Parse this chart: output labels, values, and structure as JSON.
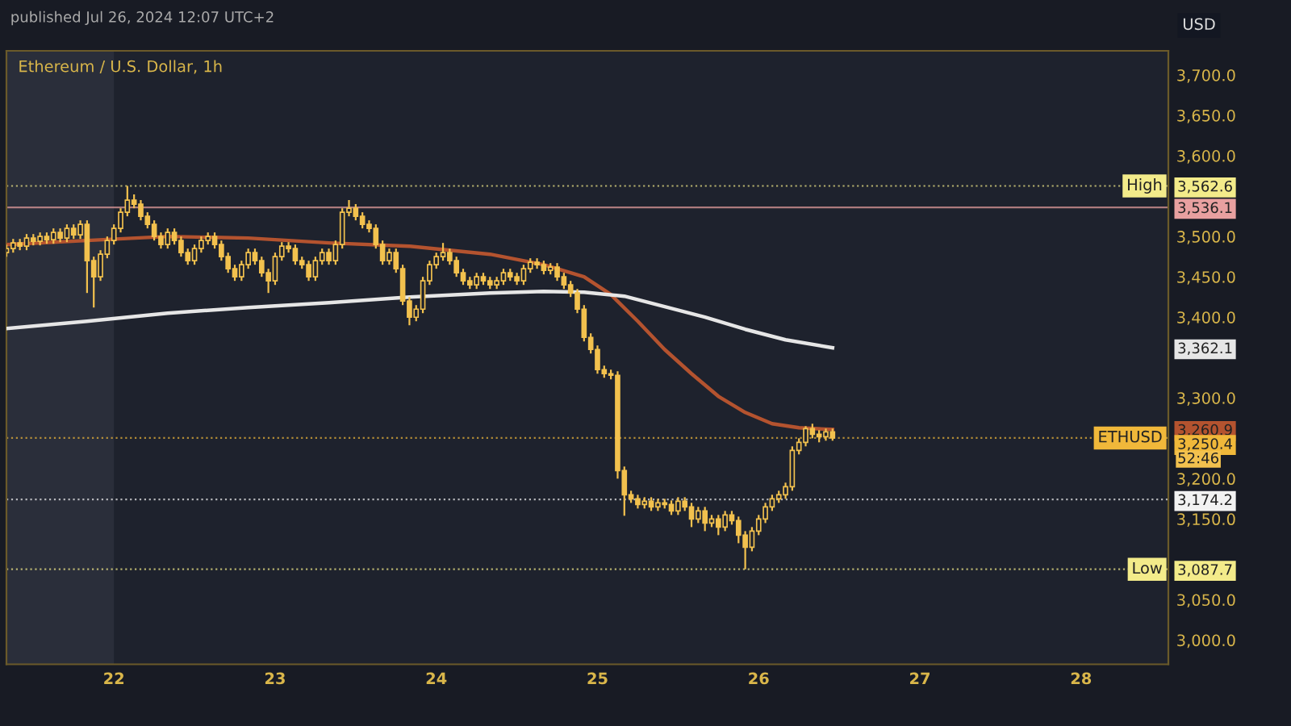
{
  "chart_data": {
    "type": "candlestick",
    "title": "Ethereum / U.S. Dollar, 1h",
    "annotations": [
      "published Jul 26, 2024 12:07 UTC+2",
      "52:46",
      "USD"
    ],
    "color": "#f2c14e",
    "x": [
      "2024-07-21T08:00",
      "2024-07-21T09:00",
      "2024-07-21T10:00",
      "2024-07-21T11:00",
      "2024-07-21T12:00",
      "2024-07-21T13:00",
      "2024-07-21T14:00",
      "2024-07-21T15:00",
      "2024-07-21T16:00",
      "2024-07-21T17:00",
      "2024-07-21T18:00",
      "2024-07-21T19:00",
      "2024-07-21T20:00",
      "2024-07-21T21:00",
      "2024-07-21T22:00",
      "2024-07-21T23:00",
      "2024-07-22T00:00",
      "2024-07-22T01:00",
      "2024-07-22T02:00",
      "2024-07-22T03:00",
      "2024-07-22T04:00",
      "2024-07-22T05:00",
      "2024-07-22T06:00",
      "2024-07-22T07:00",
      "2024-07-22T08:00",
      "2024-07-22T09:00",
      "2024-07-22T10:00",
      "2024-07-22T11:00",
      "2024-07-22T12:00",
      "2024-07-22T13:00",
      "2024-07-22T14:00",
      "2024-07-22T15:00",
      "2024-07-22T16:00",
      "2024-07-22T17:00",
      "2024-07-22T18:00",
      "2024-07-22T19:00",
      "2024-07-22T20:00",
      "2024-07-22T21:00",
      "2024-07-22T22:00",
      "2024-07-22T23:00",
      "2024-07-23T00:00",
      "2024-07-23T01:00",
      "2024-07-23T02:00",
      "2024-07-23T03:00",
      "2024-07-23T04:00",
      "2024-07-23T05:00",
      "2024-07-23T06:00",
      "2024-07-23T07:00",
      "2024-07-23T08:00",
      "2024-07-23T09:00",
      "2024-07-23T10:00",
      "2024-07-23T11:00",
      "2024-07-23T12:00",
      "2024-07-23T13:00",
      "2024-07-23T14:00",
      "2024-07-23T15:00",
      "2024-07-23T16:00",
      "2024-07-23T17:00",
      "2024-07-23T18:00",
      "2024-07-23T19:00",
      "2024-07-23T20:00",
      "2024-07-23T21:00",
      "2024-07-23T22:00",
      "2024-07-23T23:00",
      "2024-07-24T00:00",
      "2024-07-24T01:00",
      "2024-07-24T02:00",
      "2024-07-24T03:00",
      "2024-07-24T04:00",
      "2024-07-24T05:00",
      "2024-07-24T06:00",
      "2024-07-24T07:00",
      "2024-07-24T08:00",
      "2024-07-24T09:00",
      "2024-07-24T10:00",
      "2024-07-24T11:00",
      "2024-07-24T12:00",
      "2024-07-24T13:00",
      "2024-07-24T14:00",
      "2024-07-24T15:00",
      "2024-07-24T16:00",
      "2024-07-24T17:00",
      "2024-07-24T18:00",
      "2024-07-24T19:00",
      "2024-07-24T20:00",
      "2024-07-24T21:00",
      "2024-07-24T22:00",
      "2024-07-24T23:00",
      "2024-07-25T00:00",
      "2024-07-25T01:00",
      "2024-07-25T02:00",
      "2024-07-25T03:00",
      "2024-07-25T04:00",
      "2024-07-25T05:00",
      "2024-07-25T06:00",
      "2024-07-25T07:00",
      "2024-07-25T08:00",
      "2024-07-25T09:00",
      "2024-07-25T10:00",
      "2024-07-25T11:00",
      "2024-07-25T12:00",
      "2024-07-25T13:00",
      "2024-07-25T14:00",
      "2024-07-25T15:00",
      "2024-07-25T16:00",
      "2024-07-25T17:00",
      "2024-07-25T18:00",
      "2024-07-25T19:00",
      "2024-07-25T20:00",
      "2024-07-25T21:00",
      "2024-07-25T22:00",
      "2024-07-25T23:00",
      "2024-07-26T00:00",
      "2024-07-26T01:00",
      "2024-07-26T02:00",
      "2024-07-26T03:00",
      "2024-07-26T04:00",
      "2024-07-26T05:00",
      "2024-07-26T06:00",
      "2024-07-26T07:00",
      "2024-07-26T08:00",
      "2024-07-26T09:00",
      "2024-07-26T10:00",
      "2024-07-26T11:00"
    ],
    "ohlc": [
      [
        3480,
        3490,
        3475,
        3485
      ],
      [
        3485,
        3497,
        3480,
        3492
      ],
      [
        3492,
        3497,
        3483,
        3488
      ],
      [
        3488,
        3503,
        3483,
        3498
      ],
      [
        3498,
        3503,
        3489,
        3494
      ],
      [
        3494,
        3505,
        3489,
        3500
      ],
      [
        3500,
        3505,
        3491,
        3496
      ],
      [
        3496,
        3510,
        3491,
        3505
      ],
      [
        3505,
        3510,
        3493,
        3498
      ],
      [
        3498,
        3515,
        3493,
        3510
      ],
      [
        3510,
        3515,
        3497,
        3502
      ],
      [
        3502,
        3520,
        3497,
        3515
      ],
      [
        3515,
        3520,
        3430,
        3470
      ],
      [
        3470,
        3475,
        3412,
        3450
      ],
      [
        3450,
        3483,
        3445,
        3478
      ],
      [
        3478,
        3500,
        3473,
        3495
      ],
      [
        3495,
        3515,
        3490,
        3510
      ],
      [
        3510,
        3535,
        3505,
        3530
      ],
      [
        3530,
        3562.6,
        3525,
        3545
      ],
      [
        3545,
        3552,
        3535,
        3540
      ],
      [
        3540,
        3545,
        3520,
        3525
      ],
      [
        3525,
        3530,
        3510,
        3515
      ],
      [
        3515,
        3520,
        3495,
        3500
      ],
      [
        3500,
        3505,
        3485,
        3490
      ],
      [
        3490,
        3510,
        3485,
        3505
      ],
      [
        3505,
        3510,
        3490,
        3495
      ],
      [
        3495,
        3500,
        3475,
        3480
      ],
      [
        3480,
        3485,
        3465,
        3470
      ],
      [
        3470,
        3490,
        3465,
        3485
      ],
      [
        3485,
        3500,
        3480,
        3495
      ],
      [
        3495,
        3505,
        3490,
        3500
      ],
      [
        3500,
        3505,
        3485,
        3490
      ],
      [
        3490,
        3495,
        3470,
        3475
      ],
      [
        3475,
        3480,
        3455,
        3460
      ],
      [
        3460,
        3465,
        3445,
        3450
      ],
      [
        3450,
        3470,
        3445,
        3465
      ],
      [
        3465,
        3485,
        3460,
        3480
      ],
      [
        3480,
        3485,
        3465,
        3470
      ],
      [
        3470,
        3475,
        3450,
        3455
      ],
      [
        3455,
        3460,
        3430,
        3445
      ],
      [
        3445,
        3480,
        3440,
        3475
      ],
      [
        3475,
        3493,
        3470,
        3488
      ],
      [
        3488,
        3493,
        3480,
        3485
      ],
      [
        3485,
        3490,
        3465,
        3470
      ],
      [
        3470,
        3475,
        3460,
        3465
      ],
      [
        3465,
        3470,
        3445,
        3450
      ],
      [
        3450,
        3475,
        3445,
        3470
      ],
      [
        3470,
        3485,
        3465,
        3480
      ],
      [
        3480,
        3485,
        3465,
        3470
      ],
      [
        3470,
        3495,
        3465,
        3490
      ],
      [
        3490,
        3535,
        3485,
        3530
      ],
      [
        3530,
        3545,
        3525,
        3535
      ],
      [
        3535,
        3540,
        3520,
        3525
      ],
      [
        3525,
        3530,
        3510,
        3515
      ],
      [
        3515,
        3520,
        3505,
        3510
      ],
      [
        3510,
        3515,
        3485,
        3490
      ],
      [
        3490,
        3495,
        3465,
        3470
      ],
      [
        3470,
        3485,
        3465,
        3480
      ],
      [
        3480,
        3485,
        3455,
        3460
      ],
      [
        3460,
        3465,
        3415,
        3420
      ],
      [
        3420,
        3425,
        3390,
        3400
      ],
      [
        3400,
        3415,
        3395,
        3410
      ],
      [
        3410,
        3450,
        3405,
        3445
      ],
      [
        3445,
        3470,
        3440,
        3465
      ],
      [
        3465,
        3480,
        3460,
        3475
      ],
      [
        3475,
        3492,
        3470,
        3480
      ],
      [
        3480,
        3485,
        3465,
        3470
      ],
      [
        3470,
        3475,
        3450,
        3455
      ],
      [
        3455,
        3460,
        3440,
        3445
      ],
      [
        3445,
        3450,
        3435,
        3440
      ],
      [
        3440,
        3455,
        3435,
        3450
      ],
      [
        3450,
        3455,
        3440,
        3445
      ],
      [
        3445,
        3450,
        3435,
        3440
      ],
      [
        3440,
        3450,
        3435,
        3445
      ],
      [
        3445,
        3460,
        3440,
        3455
      ],
      [
        3455,
        3460,
        3445,
        3450
      ],
      [
        3450,
        3455,
        3440,
        3445
      ],
      [
        3445,
        3465,
        3440,
        3460
      ],
      [
        3460,
        3473,
        3455,
        3468
      ],
      [
        3468,
        3473,
        3460,
        3465
      ],
      [
        3465,
        3470,
        3453,
        3458
      ],
      [
        3458,
        3467,
        3453,
        3462
      ],
      [
        3462,
        3467,
        3445,
        3450
      ],
      [
        3450,
        3455,
        3435,
        3440
      ],
      [
        3440,
        3445,
        3425,
        3430
      ],
      [
        3430,
        3435,
        3405,
        3410
      ],
      [
        3410,
        3415,
        3370,
        3375
      ],
      [
        3375,
        3380,
        3355,
        3360
      ],
      [
        3360,
        3365,
        3330,
        3335
      ],
      [
        3335,
        3340,
        3325,
        3330
      ],
      [
        3330,
        3335,
        3323,
        3328
      ],
      [
        3328,
        3333,
        3200,
        3210
      ],
      [
        3210,
        3215,
        3154,
        3180
      ],
      [
        3180,
        3185,
        3170,
        3175
      ],
      [
        3175,
        3180,
        3163,
        3168
      ],
      [
        3168,
        3177,
        3163,
        3172
      ],
      [
        3172,
        3177,
        3160,
        3165
      ],
      [
        3165,
        3175,
        3160,
        3170
      ],
      [
        3170,
        3175,
        3163,
        3168
      ],
      [
        3168,
        3173,
        3155,
        3160
      ],
      [
        3160,
        3177,
        3155,
        3172
      ],
      [
        3172,
        3177,
        3160,
        3165
      ],
      [
        3165,
        3170,
        3140,
        3150
      ],
      [
        3150,
        3165,
        3145,
        3160
      ],
      [
        3160,
        3165,
        3135,
        3145
      ],
      [
        3145,
        3155,
        3140,
        3150
      ],
      [
        3150,
        3155,
        3130,
        3140
      ],
      [
        3140,
        3160,
        3135,
        3155
      ],
      [
        3155,
        3160,
        3143,
        3148
      ],
      [
        3148,
        3153,
        3120,
        3130
      ],
      [
        3130,
        3135,
        3087.7,
        3115
      ],
      [
        3115,
        3140,
        3110,
        3135
      ],
      [
        3135,
        3155,
        3130,
        3150
      ],
      [
        3150,
        3170,
        3145,
        3165
      ],
      [
        3165,
        3180,
        3160,
        3175
      ],
      [
        3175,
        3185,
        3170,
        3180
      ],
      [
        3180,
        3195,
        3175,
        3190
      ],
      [
        3190,
        3240,
        3185,
        3235
      ],
      [
        3235,
        3250,
        3230,
        3245
      ],
      [
        3245,
        3265,
        3240,
        3262
      ],
      [
        3262,
        3268,
        3250,
        3255
      ],
      [
        3255,
        3260,
        3245,
        3252
      ],
      [
        3252,
        3262,
        3247,
        3258
      ],
      [
        3258,
        3262,
        3247,
        3250.4
      ]
    ],
    "series": [
      {
        "type": "line",
        "color": "#b4532f",
        "x": [
          "2024-07-21T08:00",
          "2024-07-21T20:00",
          "2024-07-22T08:00",
          "2024-07-22T20:00",
          "2024-07-23T08:00",
          "2024-07-23T20:00",
          "2024-07-24T08:00",
          "2024-07-24T16:00",
          "2024-07-24T22:00",
          "2024-07-25T02:00",
          "2024-07-25T06:00",
          "2024-07-25T10:00",
          "2024-07-25T14:00",
          "2024-07-25T18:00",
          "2024-07-25T22:00",
          "2024-07-26T02:00",
          "2024-07-26T06:00",
          "2024-07-26T11:00"
        ],
        "values": [
          3490,
          3495,
          3500,
          3498,
          3492,
          3488,
          3478,
          3465,
          3450,
          3428,
          3395,
          3360,
          3330,
          3302,
          3282,
          3268,
          3263,
          3260.9
        ]
      },
      {
        "type": "line",
        "color": "#e6e6e6",
        "x": [
          "2024-07-21T08:00",
          "2024-07-21T20:00",
          "2024-07-22T08:00",
          "2024-07-22T20:00",
          "2024-07-23T08:00",
          "2024-07-23T20:00",
          "2024-07-24T08:00",
          "2024-07-24T16:00",
          "2024-07-24T22:00",
          "2024-07-25T04:00",
          "2024-07-25T10:00",
          "2024-07-25T16:00",
          "2024-07-25T22:00",
          "2024-07-26T04:00",
          "2024-07-26T11:00"
        ],
        "values": [
          3386,
          3395,
          3405,
          3412,
          3418,
          3425,
          3430,
          3432,
          3431,
          3426,
          3413,
          3400,
          3385,
          3372,
          3362.1
        ]
      }
    ],
    "ref_lines": [
      {
        "axis": "y",
        "value": 3562.6,
        "label": "High",
        "color": "#f3eb8a",
        "line_style": "dotted"
      },
      {
        "axis": "y",
        "value": 3536.1,
        "color": "#e8a0a0",
        "line_style": "solid"
      },
      {
        "axis": "y",
        "value": 3250.4,
        "label": "ETHUSD",
        "color": "#f0b83a",
        "line_style": "dotted"
      },
      {
        "axis": "y",
        "value": 3174.2,
        "color": "#f2f2f2",
        "line_style": "dotted"
      },
      {
        "axis": "y",
        "value": 3087.7,
        "label": "Low",
        "color": "#f3eb8a",
        "line_style": "dotted"
      }
    ],
    "bands": [
      {
        "axis": "x",
        "from": "2024-07-21T08:00",
        "to": "2024-07-22T00:00",
        "color": "#2a2e3a"
      }
    ],
    "xlim": [
      "2024-07-21T08:00",
      "2024-07-28T13:00"
    ],
    "xticks": [
      {
        "value": "2024-07-22",
        "label": "22"
      },
      {
        "value": "2024-07-23",
        "label": "23"
      },
      {
        "value": "2024-07-24",
        "label": "24"
      },
      {
        "value": "2024-07-25",
        "label": "25"
      },
      {
        "value": "2024-07-26",
        "label": "26"
      },
      {
        "value": "2024-07-27",
        "label": "27"
      },
      {
        "value": "2024-07-28",
        "label": "28"
      }
    ],
    "ylim": [
      2970,
      3730
    ],
    "yticks": [
      {
        "value": 3000,
        "label": "3,000.0"
      },
      {
        "value": 3050,
        "label": "3,050.0"
      },
      {
        "value": 3150,
        "label": "3,150.0"
      },
      {
        "value": 3200,
        "label": "3,200.0"
      },
      {
        "value": 3300,
        "label": "3,300.0"
      },
      {
        "value": 3400,
        "label": "3,400.0"
      },
      {
        "value": 3450,
        "label": "3,450.0"
      },
      {
        "value": 3500,
        "label": "3,500.0"
      },
      {
        "value": 3600,
        "label": "3,600.0"
      },
      {
        "value": 3650,
        "label": "3,650.0"
      },
      {
        "value": 3700,
        "label": "3,700.0"
      }
    ],
    "y2lim": [
      2970,
      3730
    ],
    "y2ticks": [
      {
        "value": 3562.6,
        "label": "3,562.6"
      },
      {
        "value": 3536.1,
        "label": "3,536.1"
      },
      {
        "value": 3362.1,
        "label": "3,362.1"
      },
      {
        "value": 3260.9,
        "label": "3,260.9"
      },
      {
        "value": 3250.4,
        "label": "3,250.4"
      },
      {
        "value": 3174.2,
        "label": "3,174.2"
      },
      {
        "value": 3087.7,
        "label": "3,087.7"
      }
    ]
  }
}
